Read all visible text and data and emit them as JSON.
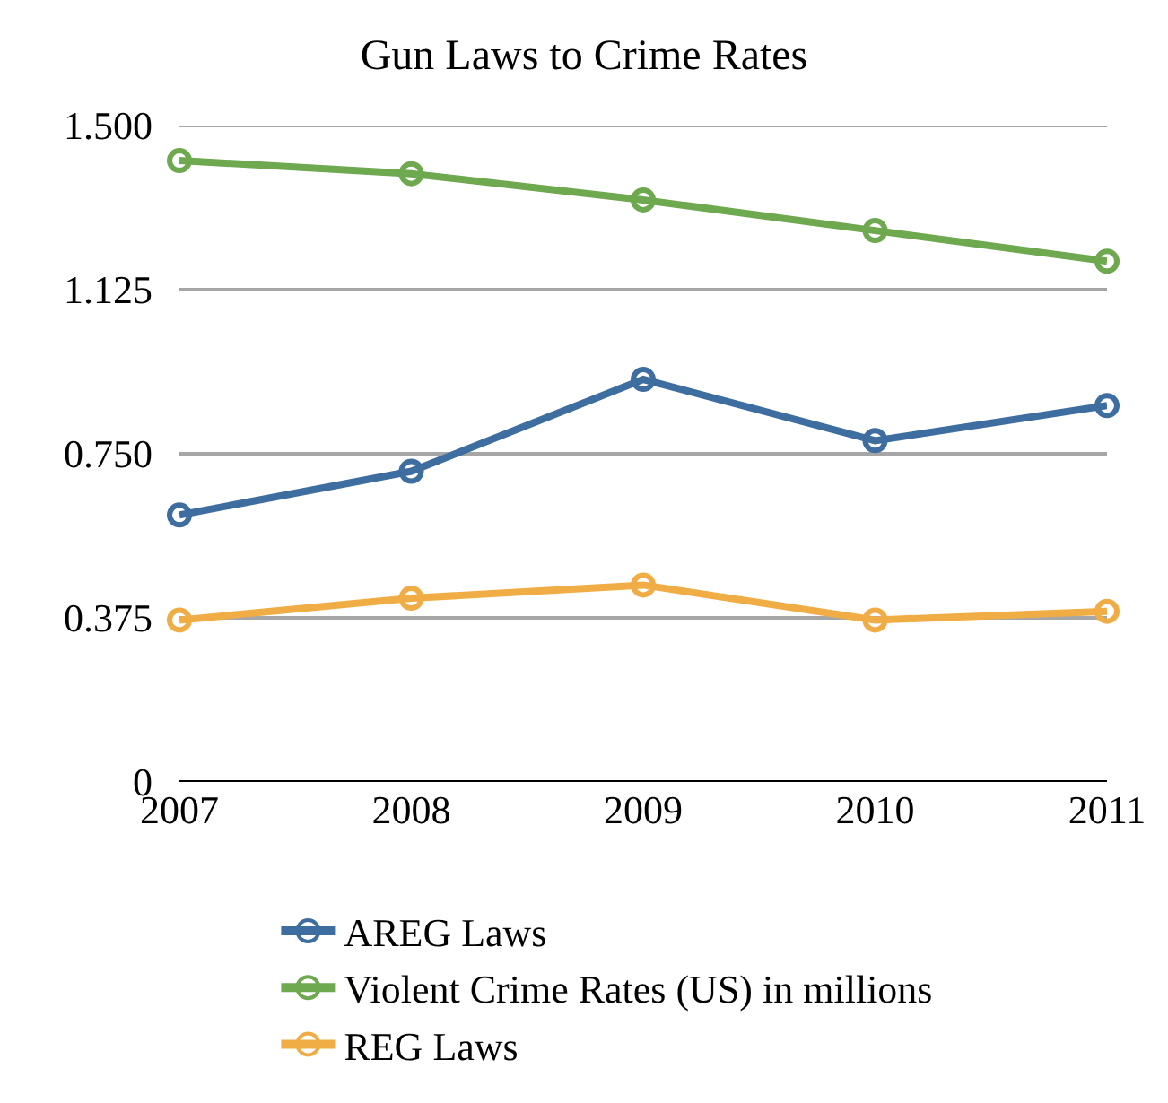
{
  "chart_data": {
    "type": "line",
    "title": "Gun Laws to Crime Rates",
    "x": [
      2007,
      2008,
      2009,
      2010,
      2011
    ],
    "xlim": [
      2007,
      2011
    ],
    "xticks": [
      2007,
      2008,
      2009,
      2010,
      2011
    ],
    "ylim": [
      0,
      1.5
    ],
    "yticks": [
      {
        "value": 0,
        "label": "0"
      },
      {
        "value": 0.375,
        "label": "0.375"
      },
      {
        "value": 0.75,
        "label": "0.750"
      },
      {
        "value": 1.125,
        "label": "1.125"
      },
      {
        "value": 1.5,
        "label": "1.500"
      }
    ],
    "series": [
      {
        "name": "AREG Laws",
        "color": "#3e6da0",
        "values": [
          0.61,
          0.71,
          0.92,
          0.78,
          0.86
        ]
      },
      {
        "name": "Violent Crime Rates (US) in millions",
        "color": "#6ea84f",
        "values": [
          1.42,
          1.39,
          1.33,
          1.26,
          1.19
        ]
      },
      {
        "name": "REG Laws",
        "color": "#f0ad45",
        "values": [
          0.37,
          0.42,
          0.45,
          0.37,
          0.39
        ]
      }
    ],
    "grid": "y",
    "legend": "bottom",
    "marker": "circle",
    "line_style": "solid"
  }
}
